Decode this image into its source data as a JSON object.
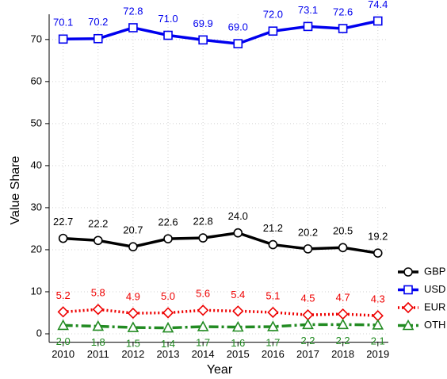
{
  "chart_data": {
    "type": "line",
    "x": [
      2010,
      2011,
      2012,
      2013,
      2014,
      2015,
      2016,
      2017,
      2018,
      2019
    ],
    "xlim": [
      2009.6,
      2019.3
    ],
    "xticks": [
      2010,
      2011,
      2012,
      2013,
      2014,
      2015,
      2016,
      2017,
      2018,
      2019
    ],
    "ylim": [
      -2,
      76
    ],
    "yticks": [
      0,
      10,
      20,
      30,
      40,
      50,
      60,
      70
    ],
    "xlabel": "Year",
    "ylabel": "Value Share",
    "grid": true,
    "legend": "lower right",
    "series": [
      {
        "name": "GBP",
        "color": "#000000",
        "marker": "circle",
        "linestyle": "solid",
        "values": [
          22.7,
          22.2,
          20.7,
          22.6,
          22.8,
          24.0,
          21.2,
          20.2,
          20.5,
          19.2
        ],
        "value_labels": [
          "22.7",
          "22.2",
          "20.7",
          "22.6",
          "22.8",
          "24.0",
          "21.2",
          "20.2",
          "20.5",
          "19.2"
        ]
      },
      {
        "name": "USD",
        "color": "#0000ee",
        "marker": "square",
        "linestyle": "solid",
        "values": [
          70.1,
          70.2,
          72.8,
          71.0,
          69.9,
          69.0,
          72.0,
          73.1,
          72.6,
          74.4
        ],
        "value_labels": [
          "70.1",
          "70.2",
          "72.8",
          "71.0",
          "69.9",
          "69.0",
          "72.0",
          "73.1",
          "72.6",
          "74.4"
        ]
      },
      {
        "name": "EUR",
        "color": "#ee0000",
        "marker": "diamond",
        "linestyle": "dotted",
        "values": [
          5.2,
          5.8,
          4.9,
          5.0,
          5.6,
          5.4,
          5.1,
          4.5,
          4.7,
          4.3
        ],
        "value_labels": [
          "5.2",
          "5.8",
          "4.9",
          "5.0",
          "5.6",
          "5.4",
          "5.1",
          "4.5",
          "4.7",
          "4.3"
        ]
      },
      {
        "name": "OTH",
        "color": "#228b22",
        "marker": "triangle",
        "linestyle": "dashdot",
        "values": [
          2.0,
          1.8,
          1.5,
          1.4,
          1.7,
          1.6,
          1.7,
          2.2,
          2.2,
          2.1
        ],
        "value_labels": [
          "2.0",
          "1.8",
          "1.5",
          "1.4",
          "1.7",
          "1.6",
          "1.7",
          "2.2",
          "2.2",
          "2.1"
        ]
      }
    ]
  }
}
